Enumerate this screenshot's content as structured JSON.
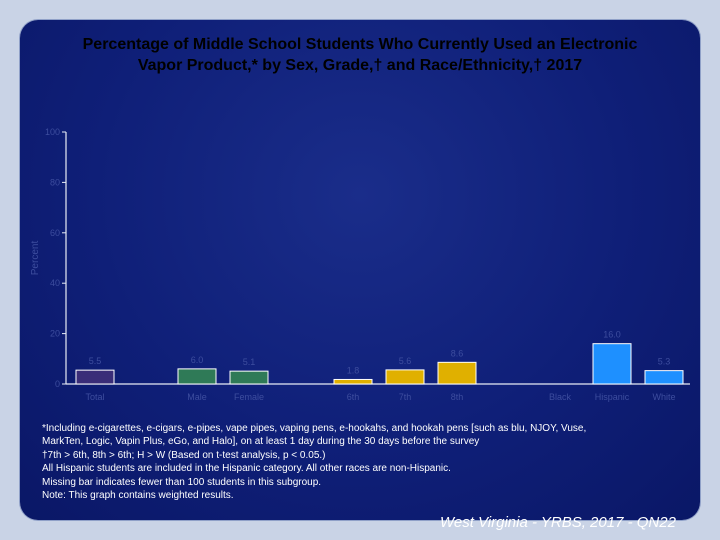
{
  "title_line1": "Percentage of Middle School Students Who Currently Used an Electronic",
  "title_line2": "Vapor Product,* by Sex, Grade,† and Race/Ethnicity,† 2017",
  "chart_data": {
    "type": "bar",
    "ylabel": "Percent",
    "ylim": [
      0,
      100
    ],
    "yticks": [
      0,
      20,
      40,
      60,
      80,
      100
    ],
    "categories": [
      "Total",
      "Male",
      "Female",
      "6th",
      "7th",
      "8th",
      "Black",
      "Hispanic",
      "White"
    ],
    "values": [
      5.5,
      6.0,
      5.1,
      1.8,
      5.6,
      8.6,
      null,
      16.0,
      5.3
    ],
    "value_labels": [
      "5.5",
      "6.0",
      "5.1",
      "1.8",
      "5.6",
      "8.6",
      "",
      "16.0",
      "5.3"
    ],
    "colors": [
      "#3a2d78",
      "#2f7a57",
      "#2f7a57",
      "#e0b000",
      "#e0b000",
      "#e0b000",
      "#1e90ff",
      "#1e90ff",
      "#1e90ff"
    ],
    "grid": false
  },
  "footnotes": [
    "*Including e-cigarettes, e-cigars, e-pipes, vape pipes, vaping pens, e-hookahs, and hookah pens [such as blu, NJOY, Vuse,",
    "MarkTen, Logic, Vapin Plus, eGo, and Halo], on at least 1  day during the 30 days before the survey",
    "†7th > 6th, 8th > 6th; H > W (Based on t-test analysis, p < 0.05.)",
    "All Hispanic students are included in the Hispanic category.  All other races are non-Hispanic.",
    "Missing bar indicates fewer than 100 students in this subgroup.",
    "Note: This graph contains weighted results."
  ],
  "source": "West Virginia - YRBS, 2017 - QN22"
}
